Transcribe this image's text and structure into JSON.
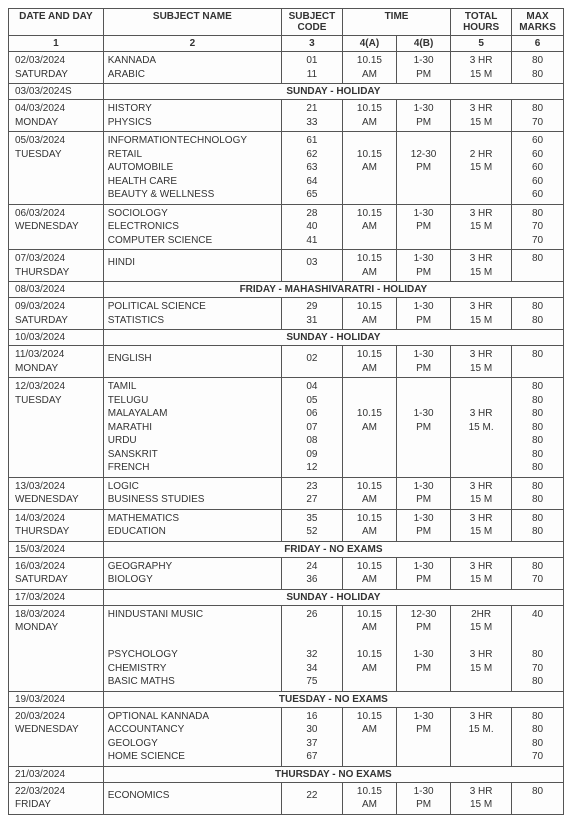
{
  "headers": {
    "date": "DATE AND DAY",
    "subject": "SUBJECT NAME",
    "code": "SUBJECT CODE",
    "time": "TIME",
    "hours": "TOTAL HOURS",
    "marks": "MAX MARKS",
    "sub1": "1",
    "sub2": "2",
    "sub3": "3",
    "sub4a": "4(A)",
    "sub4b": "4(B)",
    "sub5": "5",
    "sub6": "6"
  },
  "rows": [
    {
      "date": [
        "02/03/2024",
        "SATURDAY"
      ],
      "subjects": [
        "KANNADA",
        "ARABIC"
      ],
      "codes": [
        "01",
        "11"
      ],
      "timeA": [
        "10.15",
        "AM"
      ],
      "timeB": [
        "1-30",
        "PM"
      ],
      "hours": [
        "3 HR",
        "15 M"
      ],
      "marks": [
        "80",
        "80"
      ]
    },
    {
      "banner_date": "03/03/2024S",
      "banner_text": "SUNDAY  -  HOLIDAY"
    },
    {
      "date": [
        "04/03/2024",
        "MONDAY"
      ],
      "subjects": [
        "HISTORY",
        "PHYSICS"
      ],
      "codes": [
        "21",
        "33"
      ],
      "timeA": [
        "10.15",
        "AM"
      ],
      "timeB": [
        "1-30",
        "PM"
      ],
      "hours": [
        "3 HR",
        "15 M"
      ],
      "marks": [
        "80",
        "70"
      ]
    },
    {
      "date": [
        "05/03/2024",
        "TUESDAY"
      ],
      "subjects": [
        "INFORMATIONTECHNOLOGY",
        "RETAIL",
        "AUTOMOBILE",
        "HEALTH CARE",
        "BEAUTY & WELLNESS"
      ],
      "codes": [
        "61",
        "62",
        "63",
        "64",
        "65"
      ],
      "timeA": [
        "",
        "10.15",
        "AM",
        "",
        ""
      ],
      "timeB": [
        "",
        "12-30",
        "PM",
        "",
        ""
      ],
      "hours": [
        "",
        "2 HR",
        "15 M",
        "",
        ""
      ],
      "marks": [
        "60",
        "60",
        "60",
        "60",
        "60"
      ]
    },
    {
      "date": [
        "06/03/2024",
        "WEDNESDAY"
      ],
      "subjects": [
        "SOCIOLOGY",
        "ELECTRONICS",
        "COMPUTER SCIENCE"
      ],
      "codes": [
        "28",
        "40",
        "41"
      ],
      "timeA": [
        "10.15",
        "AM",
        ""
      ],
      "timeB": [
        "1-30",
        "PM",
        ""
      ],
      "hours": [
        "3 HR",
        "15 M",
        ""
      ],
      "marks": [
        "80",
        "70",
        "70"
      ]
    },
    {
      "date": [
        "07/03/2024",
        "THURSDAY"
      ],
      "subjects": [
        "HINDI"
      ],
      "codes": [
        "03"
      ],
      "timeA": [
        "10.15",
        "AM"
      ],
      "timeB": [
        "1-30",
        "PM"
      ],
      "hours": [
        "3 HR",
        "15 M"
      ],
      "marks": [
        "80"
      ],
      "single_subject": true
    },
    {
      "banner_date": "08/03/2024",
      "banner_text": "FRIDAY - MAHASHIVARATRI - HOLIDAY"
    },
    {
      "date": [
        "09/03/2024",
        "SATURDAY"
      ],
      "subjects": [
        "POLITICAL SCIENCE",
        "STATISTICS"
      ],
      "codes": [
        "29",
        "31"
      ],
      "timeA": [
        "10.15",
        "AM"
      ],
      "timeB": [
        "1-30",
        "PM"
      ],
      "hours": [
        "3 HR",
        "15 M"
      ],
      "marks": [
        "80",
        "80"
      ]
    },
    {
      "banner_date": "10/03/2024",
      "banner_text": "SUNDAY  - HOLIDAY"
    },
    {
      "date": [
        "11/03/2024",
        "MONDAY"
      ],
      "subjects": [
        "ENGLISH"
      ],
      "codes": [
        "02"
      ],
      "timeA": [
        "10.15",
        "AM"
      ],
      "timeB": [
        "1-30",
        "PM"
      ],
      "hours": [
        "3 HR",
        "15 M"
      ],
      "marks": [
        "80"
      ],
      "single_subject": true
    },
    {
      "date": [
        "12/03/2024",
        "TUESDAY"
      ],
      "subjects": [
        "TAMIL",
        "TELUGU",
        "MALAYALAM",
        "MARATHI",
        "URDU",
        "SANSKRIT",
        "FRENCH"
      ],
      "codes": [
        "04",
        "05",
        "06",
        "07",
        "08",
        "09",
        "12"
      ],
      "timeA": [
        "",
        "",
        "10.15",
        "AM",
        "",
        "",
        ""
      ],
      "timeB": [
        "",
        "",
        "1-30",
        "PM",
        "",
        "",
        ""
      ],
      "hours": [
        "",
        "",
        "3 HR",
        "15 M.",
        "",
        "",
        ""
      ],
      "marks": [
        "80",
        "80",
        "80",
        "80",
        "80",
        "80",
        "80"
      ]
    },
    {
      "date": [
        "13/03/2024",
        "WEDNESDAY"
      ],
      "subjects": [
        "LOGIC",
        "BUSINESS STUDIES"
      ],
      "codes": [
        "23",
        "27"
      ],
      "timeA": [
        "10.15",
        "AM"
      ],
      "timeB": [
        "1-30",
        "PM"
      ],
      "hours": [
        "3 HR",
        "15 M"
      ],
      "marks": [
        "80",
        "80"
      ]
    },
    {
      "date": [
        "14/03/2024",
        "THURSDAY"
      ],
      "subjects": [
        "MATHEMATICS",
        "EDUCATION"
      ],
      "codes": [
        "35",
        "52"
      ],
      "timeA": [
        "10.15",
        "AM"
      ],
      "timeB": [
        "1-30",
        "PM"
      ],
      "hours": [
        "3 HR",
        "15 M"
      ],
      "marks": [
        "80",
        "80"
      ]
    },
    {
      "banner_date": "15/03/2024",
      "banner_text": "FRIDAY -   NO EXAMS"
    },
    {
      "date": [
        "16/03/2024",
        "SATURDAY"
      ],
      "subjects": [
        "GEOGRAPHY",
        "BIOLOGY"
      ],
      "codes": [
        "24",
        "36"
      ],
      "timeA": [
        "10.15",
        "AM"
      ],
      "timeB": [
        "1-30",
        "PM"
      ],
      "hours": [
        "3 HR",
        "15 M"
      ],
      "marks": [
        "80",
        "70"
      ]
    },
    {
      "banner_date": "17/03/2024",
      "banner_text": "SUNDAY - HOLIDAY"
    },
    {
      "date": [
        "18/03/2024",
        "MONDAY"
      ],
      "subjects": [
        "HINDUSTANI MUSIC",
        "",
        "",
        "PSYCHOLOGY",
        "CHEMISTRY",
        "BASIC MATHS"
      ],
      "codes": [
        "26",
        "",
        "",
        "32",
        "34",
        "75"
      ],
      "timeA": [
        "10.15",
        "AM",
        "",
        "10.15",
        "AM",
        ""
      ],
      "timeB": [
        "12-30",
        "PM",
        "",
        "1-30",
        "PM",
        ""
      ],
      "hours": [
        "2HR",
        "15 M",
        "",
        "3 HR",
        "15 M",
        ""
      ],
      "marks": [
        "40",
        "",
        "",
        "80",
        "70",
        "80"
      ]
    },
    {
      "banner_date": "19/03/2024",
      "banner_text": "TUESDAY   -   NO EXAMS"
    },
    {
      "date": [
        "20/03/2024",
        "WEDNESDAY"
      ],
      "subjects": [
        "OPTIONAL KANNADA",
        "ACCOUNTANCY",
        "GEOLOGY",
        "HOME SCIENCE"
      ],
      "codes": [
        "16",
        "30",
        "37",
        "67"
      ],
      "timeA": [
        "10.15",
        "AM",
        "",
        ""
      ],
      "timeB": [
        "1-30",
        "PM",
        "",
        ""
      ],
      "hours": [
        "3 HR",
        "15 M.",
        "",
        ""
      ],
      "marks": [
        "80",
        "80",
        "80",
        "70"
      ]
    },
    {
      "banner_date": "21/03/2024",
      "banner_text": "THURSDAY  -  NO EXAMS"
    },
    {
      "date": [
        "22/03/2024",
        "FRIDAY"
      ],
      "subjects": [
        "ECONOMICS"
      ],
      "codes": [
        "22"
      ],
      "timeA": [
        "10.15",
        "AM"
      ],
      "timeB": [
        "1-30",
        "PM"
      ],
      "hours": [
        "3 HR",
        "15 M"
      ],
      "marks": [
        "80"
      ],
      "single_subject": true
    }
  ]
}
